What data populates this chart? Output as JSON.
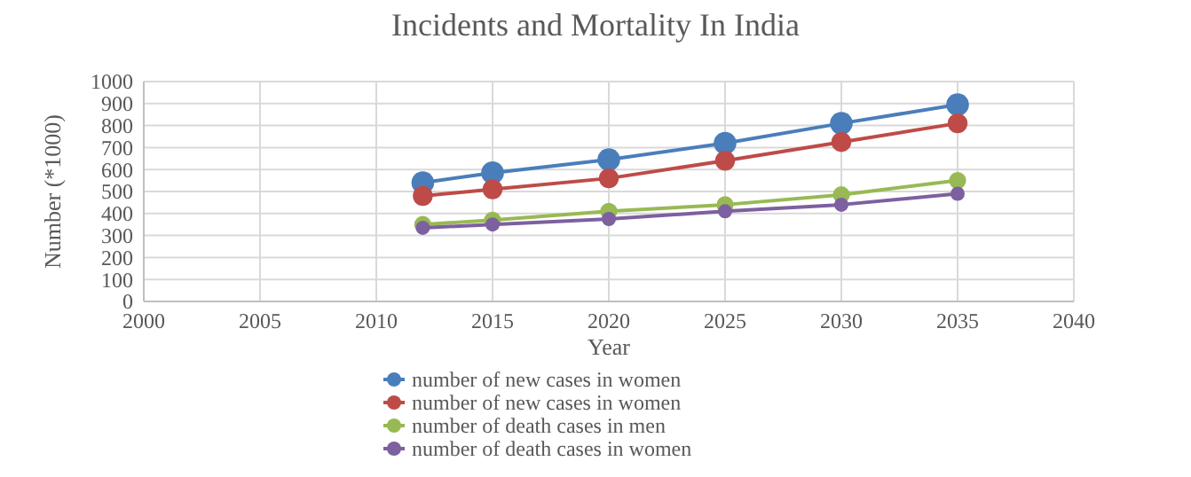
{
  "chart_data": {
    "type": "line",
    "title": "Incidents and Mortality In India",
    "xlabel": "Year",
    "ylabel": "Number (*1000)",
    "x": [
      2012,
      2015,
      2020,
      2025,
      2030,
      2035
    ],
    "series": [
      {
        "name": "number of new cases in women",
        "color": "#4a7ebb",
        "values": [
          540,
          585,
          645,
          720,
          810,
          895
        ]
      },
      {
        "name": "number of new cases in women",
        "color": "#be4b48",
        "values": [
          480,
          510,
          560,
          640,
          725,
          810
        ]
      },
      {
        "name": "number of death cases in men",
        "color": "#98b954",
        "values": [
          350,
          370,
          410,
          440,
          485,
          550
        ]
      },
      {
        "name": "number of death cases in women",
        "color": "#7d60a0",
        "values": [
          335,
          350,
          375,
          410,
          440,
          490
        ]
      }
    ],
    "xlim": [
      2000,
      2040
    ],
    "xticks": [
      2000,
      2005,
      2010,
      2015,
      2020,
      2025,
      2030,
      2035,
      2040
    ],
    "ylim": [
      0,
      1000
    ],
    "yticks": [
      0,
      100,
      200,
      300,
      400,
      500,
      600,
      700,
      800,
      900,
      1000
    ],
    "grid": true,
    "legend": "bottom",
    "marker": "circle",
    "line_style": "solid"
  }
}
